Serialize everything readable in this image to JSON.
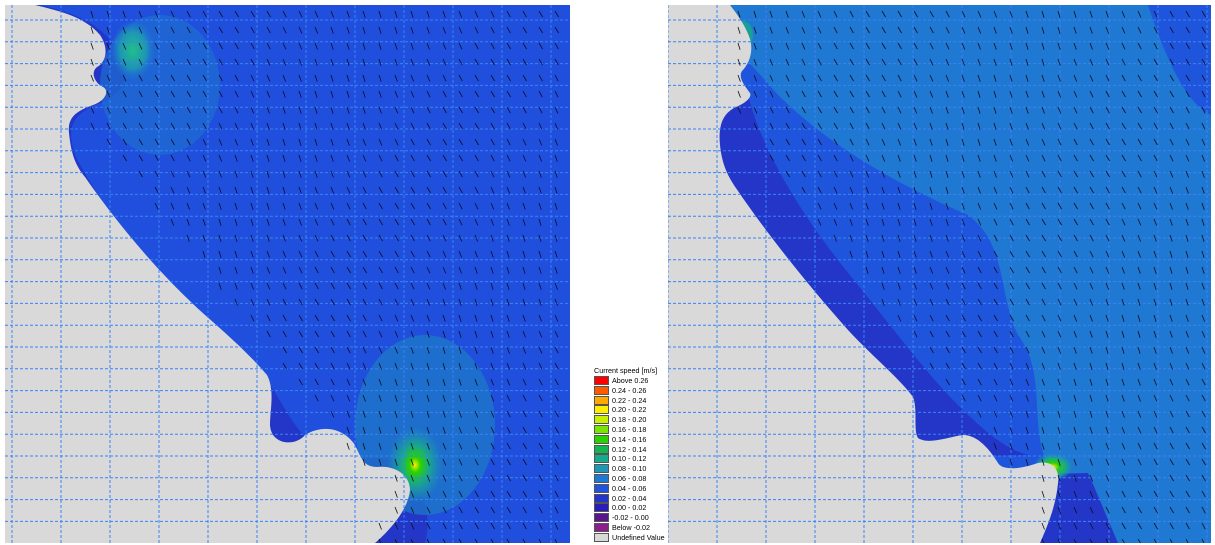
{
  "legend": {
    "title": "Current speed [m/s]",
    "items": [
      {
        "label": "Above  0.26",
        "color": "#ff0000"
      },
      {
        "label": "0.24 -  0.26",
        "color": "#ff5a00"
      },
      {
        "label": "0.22 -  0.24",
        "color": "#ffa800"
      },
      {
        "label": "0.20 -  0.22",
        "color": "#ffee00"
      },
      {
        "label": "0.18 -  0.20",
        "color": "#c8f000"
      },
      {
        "label": "0.16 -  0.18",
        "color": "#78e600"
      },
      {
        "label": "0.14 -  0.16",
        "color": "#2ad200"
      },
      {
        "label": "0.12 -  0.14",
        "color": "#14b450"
      },
      {
        "label": "0.10 -  0.12",
        "color": "#18a88a"
      },
      {
        "label": "0.08 -  0.10",
        "color": "#1e96b4"
      },
      {
        "label": "0.06 -  0.08",
        "color": "#1f78d2"
      },
      {
        "label": "0.04 -  0.06",
        "color": "#1f55dc"
      },
      {
        "label": "0.02 -  0.04",
        "color": "#2336c8"
      },
      {
        "label": "0.00 -  0.02",
        "color": "#2a1eb4"
      },
      {
        "label": "-0.02 -  0.00",
        "color": "#5a148c"
      },
      {
        "label": "Below  -0.02",
        "color": "#8c1e8c"
      },
      {
        "label": "Undefined Value",
        "color": "#d9d9d9"
      }
    ]
  },
  "colors": {
    "land": "#d9d9d9",
    "grid": "#3b82f6",
    "arrow": "#101010"
  }
}
